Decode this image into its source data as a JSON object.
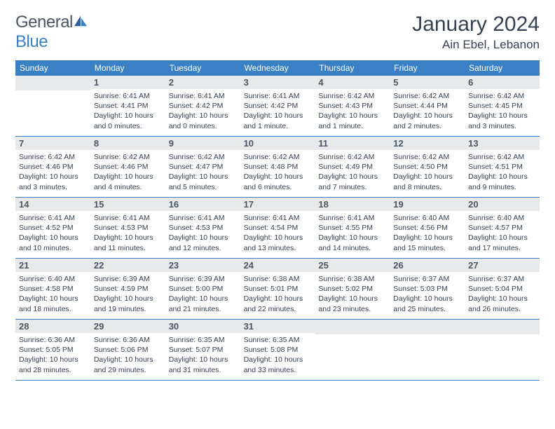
{
  "brand": {
    "text1": "General",
    "text2": "Blue"
  },
  "title": "January 2024",
  "location": "Ain Ebel, Lebanon",
  "colors": {
    "header_bg": "#3a80c5",
    "daynum_bg": "#e8e9eb",
    "text": "#374151",
    "border": "#3a80c5"
  },
  "dow": [
    "Sunday",
    "Monday",
    "Tuesday",
    "Wednesday",
    "Thursday",
    "Friday",
    "Saturday"
  ],
  "weeks": [
    [
      {
        "n": "",
        "sr": "",
        "ss": "",
        "dl": ""
      },
      {
        "n": "1",
        "sr": "Sunrise: 6:41 AM",
        "ss": "Sunset: 4:41 PM",
        "dl": "Daylight: 10 hours and 0 minutes."
      },
      {
        "n": "2",
        "sr": "Sunrise: 6:41 AM",
        "ss": "Sunset: 4:42 PM",
        "dl": "Daylight: 10 hours and 0 minutes."
      },
      {
        "n": "3",
        "sr": "Sunrise: 6:41 AM",
        "ss": "Sunset: 4:42 PM",
        "dl": "Daylight: 10 hours and 1 minute."
      },
      {
        "n": "4",
        "sr": "Sunrise: 6:42 AM",
        "ss": "Sunset: 4:43 PM",
        "dl": "Daylight: 10 hours and 1 minute."
      },
      {
        "n": "5",
        "sr": "Sunrise: 6:42 AM",
        "ss": "Sunset: 4:44 PM",
        "dl": "Daylight: 10 hours and 2 minutes."
      },
      {
        "n": "6",
        "sr": "Sunrise: 6:42 AM",
        "ss": "Sunset: 4:45 PM",
        "dl": "Daylight: 10 hours and 3 minutes."
      }
    ],
    [
      {
        "n": "7",
        "sr": "Sunrise: 6:42 AM",
        "ss": "Sunset: 4:46 PM",
        "dl": "Daylight: 10 hours and 3 minutes."
      },
      {
        "n": "8",
        "sr": "Sunrise: 6:42 AM",
        "ss": "Sunset: 4:46 PM",
        "dl": "Daylight: 10 hours and 4 minutes."
      },
      {
        "n": "9",
        "sr": "Sunrise: 6:42 AM",
        "ss": "Sunset: 4:47 PM",
        "dl": "Daylight: 10 hours and 5 minutes."
      },
      {
        "n": "10",
        "sr": "Sunrise: 6:42 AM",
        "ss": "Sunset: 4:48 PM",
        "dl": "Daylight: 10 hours and 6 minutes."
      },
      {
        "n": "11",
        "sr": "Sunrise: 6:42 AM",
        "ss": "Sunset: 4:49 PM",
        "dl": "Daylight: 10 hours and 7 minutes."
      },
      {
        "n": "12",
        "sr": "Sunrise: 6:42 AM",
        "ss": "Sunset: 4:50 PM",
        "dl": "Daylight: 10 hours and 8 minutes."
      },
      {
        "n": "13",
        "sr": "Sunrise: 6:42 AM",
        "ss": "Sunset: 4:51 PM",
        "dl": "Daylight: 10 hours and 9 minutes."
      }
    ],
    [
      {
        "n": "14",
        "sr": "Sunrise: 6:41 AM",
        "ss": "Sunset: 4:52 PM",
        "dl": "Daylight: 10 hours and 10 minutes."
      },
      {
        "n": "15",
        "sr": "Sunrise: 6:41 AM",
        "ss": "Sunset: 4:53 PM",
        "dl": "Daylight: 10 hours and 11 minutes."
      },
      {
        "n": "16",
        "sr": "Sunrise: 6:41 AM",
        "ss": "Sunset: 4:53 PM",
        "dl": "Daylight: 10 hours and 12 minutes."
      },
      {
        "n": "17",
        "sr": "Sunrise: 6:41 AM",
        "ss": "Sunset: 4:54 PM",
        "dl": "Daylight: 10 hours and 13 minutes."
      },
      {
        "n": "18",
        "sr": "Sunrise: 6:41 AM",
        "ss": "Sunset: 4:55 PM",
        "dl": "Daylight: 10 hours and 14 minutes."
      },
      {
        "n": "19",
        "sr": "Sunrise: 6:40 AM",
        "ss": "Sunset: 4:56 PM",
        "dl": "Daylight: 10 hours and 15 minutes."
      },
      {
        "n": "20",
        "sr": "Sunrise: 6:40 AM",
        "ss": "Sunset: 4:57 PM",
        "dl": "Daylight: 10 hours and 17 minutes."
      }
    ],
    [
      {
        "n": "21",
        "sr": "Sunrise: 6:40 AM",
        "ss": "Sunset: 4:58 PM",
        "dl": "Daylight: 10 hours and 18 minutes."
      },
      {
        "n": "22",
        "sr": "Sunrise: 6:39 AM",
        "ss": "Sunset: 4:59 PM",
        "dl": "Daylight: 10 hours and 19 minutes."
      },
      {
        "n": "23",
        "sr": "Sunrise: 6:39 AM",
        "ss": "Sunset: 5:00 PM",
        "dl": "Daylight: 10 hours and 21 minutes."
      },
      {
        "n": "24",
        "sr": "Sunrise: 6:38 AM",
        "ss": "Sunset: 5:01 PM",
        "dl": "Daylight: 10 hours and 22 minutes."
      },
      {
        "n": "25",
        "sr": "Sunrise: 6:38 AM",
        "ss": "Sunset: 5:02 PM",
        "dl": "Daylight: 10 hours and 23 minutes."
      },
      {
        "n": "26",
        "sr": "Sunrise: 6:37 AM",
        "ss": "Sunset: 5:03 PM",
        "dl": "Daylight: 10 hours and 25 minutes."
      },
      {
        "n": "27",
        "sr": "Sunrise: 6:37 AM",
        "ss": "Sunset: 5:04 PM",
        "dl": "Daylight: 10 hours and 26 minutes."
      }
    ],
    [
      {
        "n": "28",
        "sr": "Sunrise: 6:36 AM",
        "ss": "Sunset: 5:05 PM",
        "dl": "Daylight: 10 hours and 28 minutes."
      },
      {
        "n": "29",
        "sr": "Sunrise: 6:36 AM",
        "ss": "Sunset: 5:06 PM",
        "dl": "Daylight: 10 hours and 29 minutes."
      },
      {
        "n": "30",
        "sr": "Sunrise: 6:35 AM",
        "ss": "Sunset: 5:07 PM",
        "dl": "Daylight: 10 hours and 31 minutes."
      },
      {
        "n": "31",
        "sr": "Sunrise: 6:35 AM",
        "ss": "Sunset: 5:08 PM",
        "dl": "Daylight: 10 hours and 33 minutes."
      },
      {
        "n": "",
        "sr": "",
        "ss": "",
        "dl": ""
      },
      {
        "n": "",
        "sr": "",
        "ss": "",
        "dl": ""
      },
      {
        "n": "",
        "sr": "",
        "ss": "",
        "dl": ""
      }
    ]
  ]
}
